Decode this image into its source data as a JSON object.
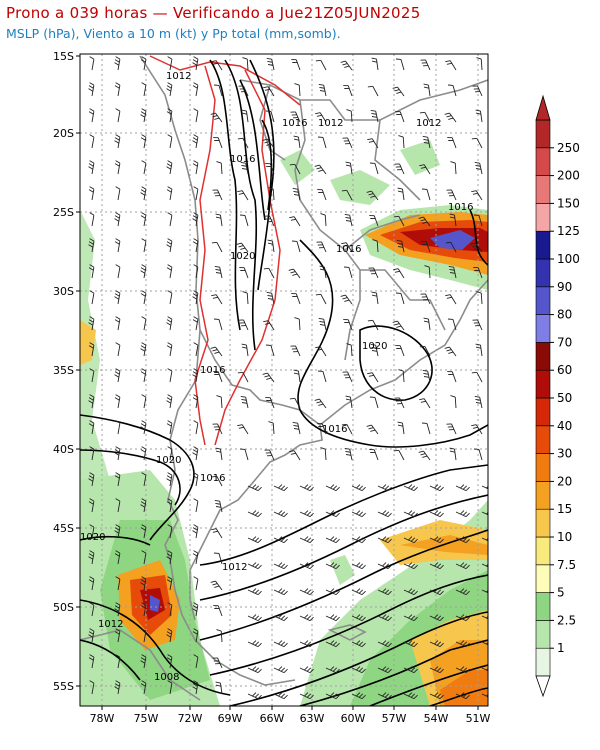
{
  "title": "Prono a 039 horas — Verificando a Jue21Z05JUN2025",
  "subtitle": "MSLP (hPa), Viento a 10 m (kt) y Pp total (mm,somb).",
  "lat_labels": [
    "15S",
    "20S",
    "25S",
    "30S",
    "35S",
    "40S",
    "45S",
    "50S",
    "55S"
  ],
  "lon_labels": [
    "78W",
    "75W",
    "72W",
    "69W",
    "66W",
    "63W",
    "60W",
    "57W",
    "54W",
    "51W"
  ],
  "isobar_labels": [
    "1012",
    "1016",
    "1012",
    "1012",
    "1016",
    "1016",
    "1016",
    "1020",
    "1020",
    "1016",
    "1020",
    "1016",
    "1020",
    "1012",
    "1012",
    "1008"
  ],
  "colorbar": {
    "labels": [
      "1",
      "2.5",
      "5",
      "7.5",
      "10",
      "15",
      "20",
      "30",
      "40",
      "50",
      "60",
      "70",
      "80",
      "90",
      "100",
      "125",
      "150",
      "200",
      "250"
    ],
    "colors": [
      "#e6f6e3",
      "#b7e6ad",
      "#8ed682",
      "#fdfcb8",
      "#f9ea7d",
      "#f7c64c",
      "#f4a020",
      "#f07b10",
      "#e64b0a",
      "#d42808",
      "#b00c08",
      "#8a0a05",
      "#7e7ee6",
      "#5555cc",
      "#3333b0",
      "#1a1a90",
      "#f4a6a6",
      "#e87878",
      "#d44a4a",
      "#b22828"
    ]
  }
}
